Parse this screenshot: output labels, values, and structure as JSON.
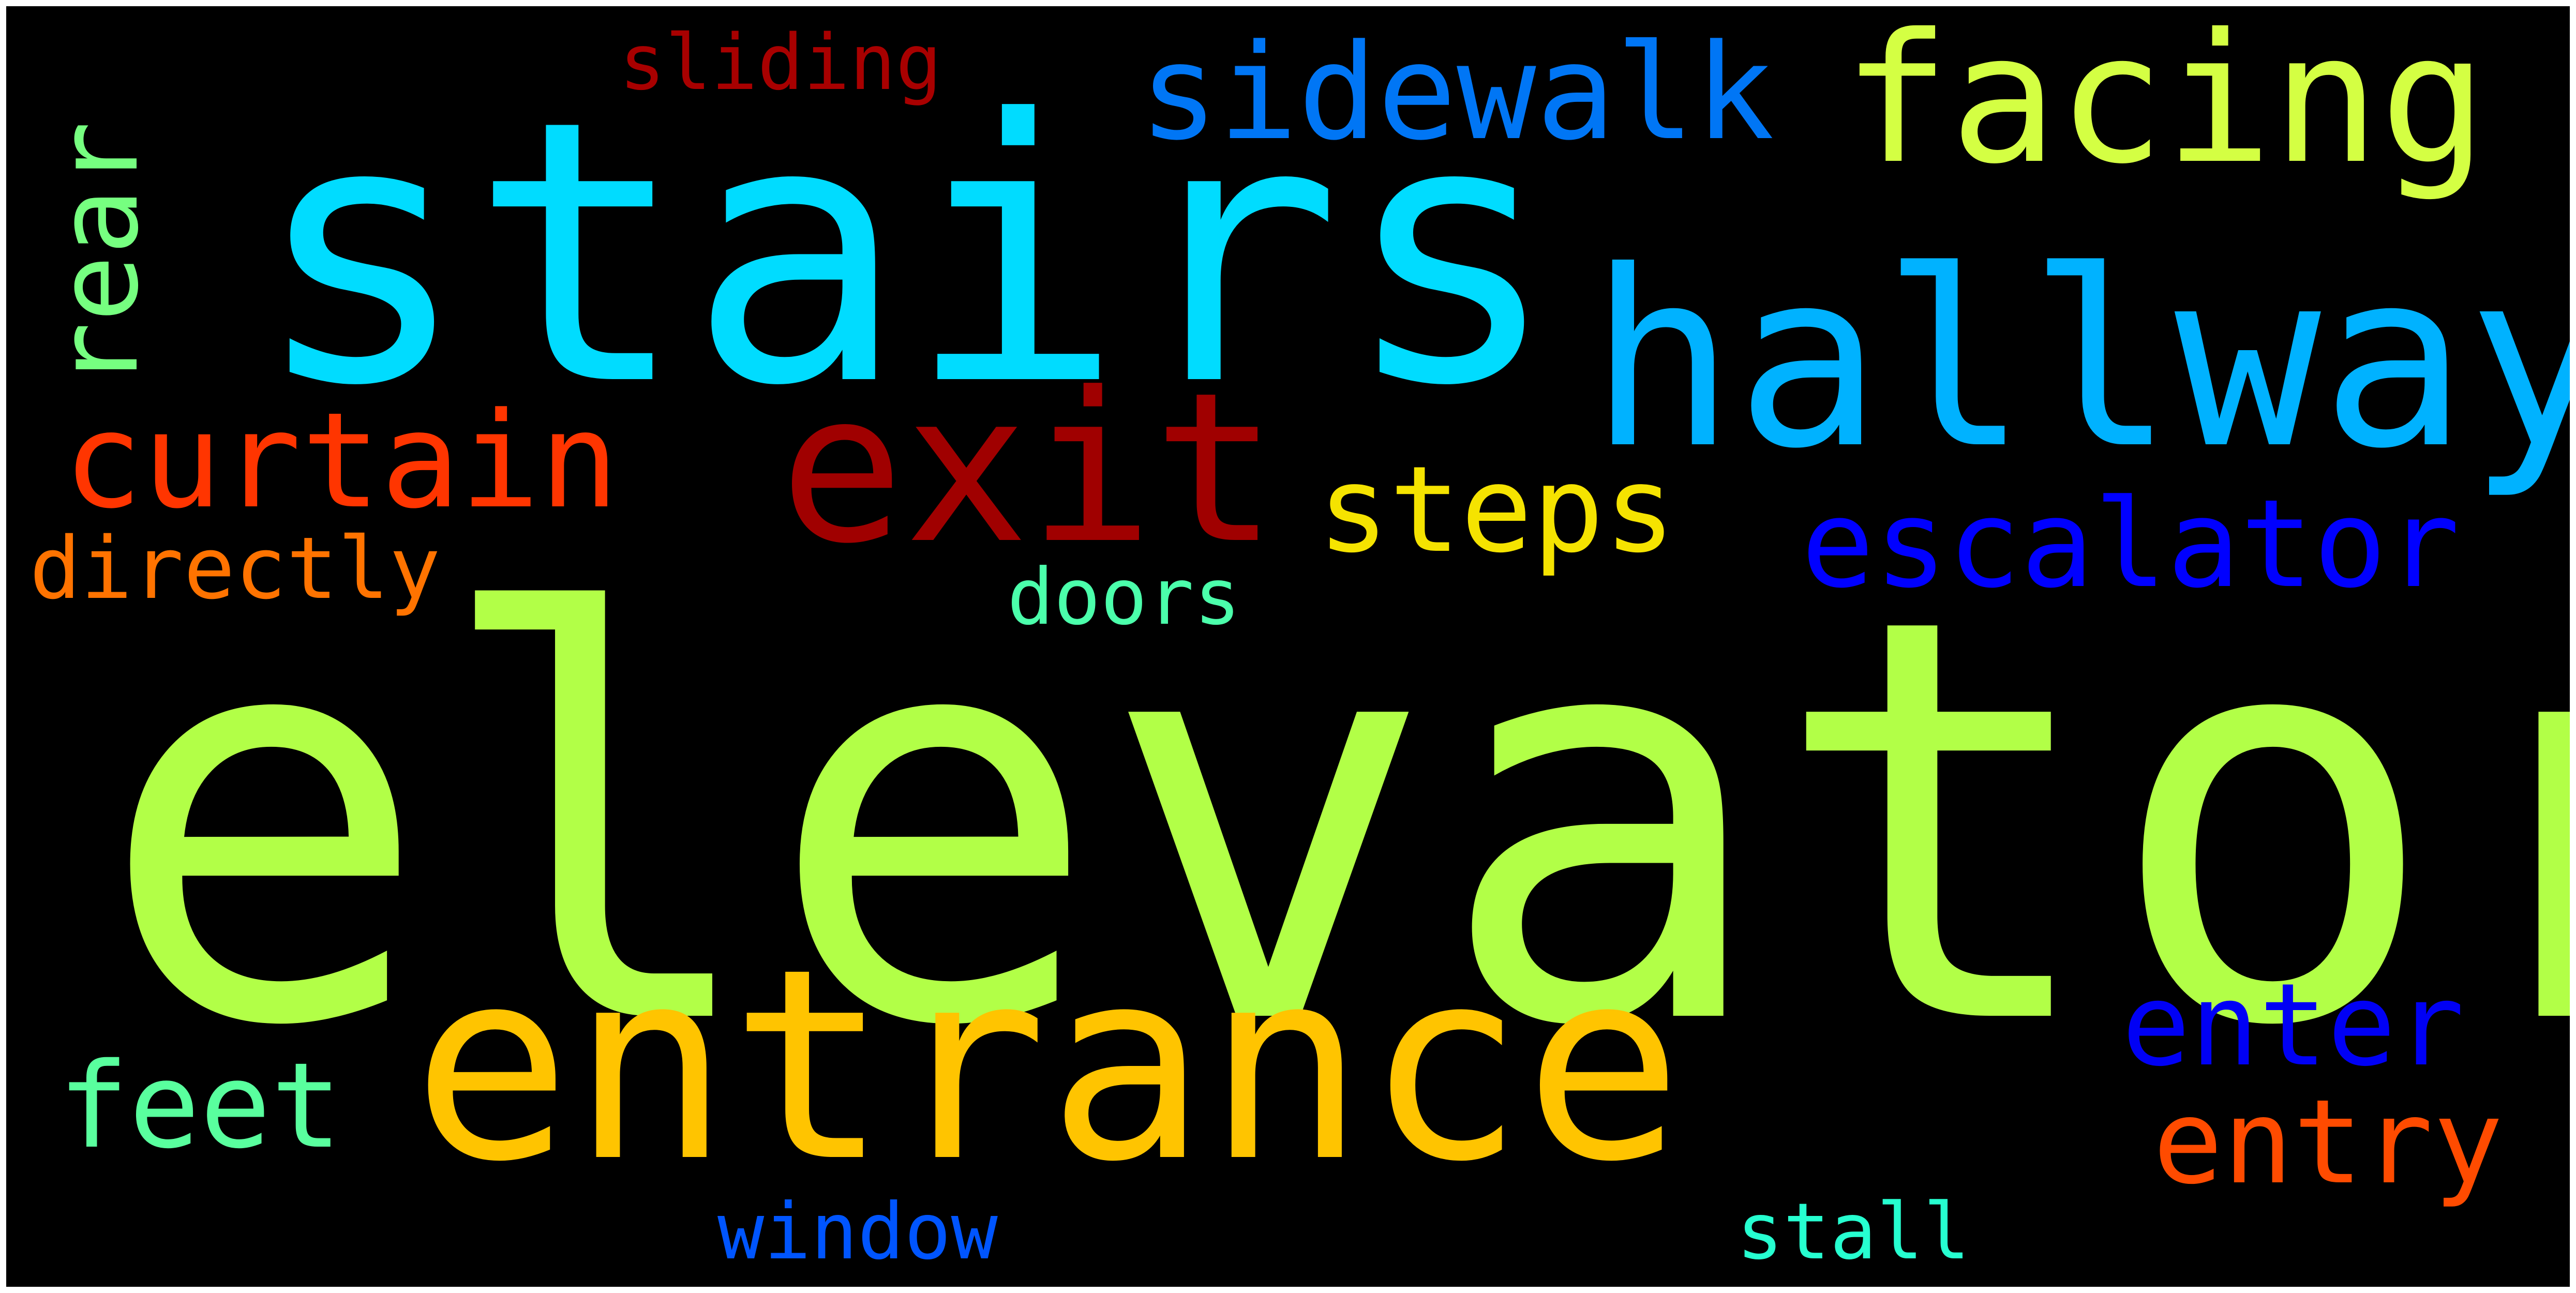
{
  "background": "#000000",
  "frame": "#ffffff",
  "words": [
    {
      "text": "elevator",
      "color": "#b2ff47"
    },
    {
      "text": "stairs",
      "color": "#00dcff"
    },
    {
      "text": "entrance",
      "color": "#ffc400"
    },
    {
      "text": "hallway",
      "color": "#00b2ff"
    },
    {
      "text": "exit",
      "color": "#a00000"
    },
    {
      "text": "facing",
      "color": "#d4ff43"
    },
    {
      "text": "sidewalk",
      "color": "#0076f5"
    },
    {
      "text": "curtain",
      "color": "#ff3500"
    },
    {
      "text": "escalator",
      "color": "#0000ff"
    },
    {
      "text": "steps",
      "color": "#f5e300"
    },
    {
      "text": "enter",
      "color": "#0000f5"
    },
    {
      "text": "entry",
      "color": "#ff4b00"
    },
    {
      "text": "feet",
      "color": "#59ff9e"
    },
    {
      "text": "rear",
      "color": "#76ff80"
    },
    {
      "text": "directly",
      "color": "#ff7300"
    },
    {
      "text": "doors",
      "color": "#4bffab"
    },
    {
      "text": "sliding",
      "color": "#a80000"
    },
    {
      "text": "window",
      "color": "#0055ff"
    },
    {
      "text": "stall",
      "color": "#26ffd0"
    }
  ]
}
